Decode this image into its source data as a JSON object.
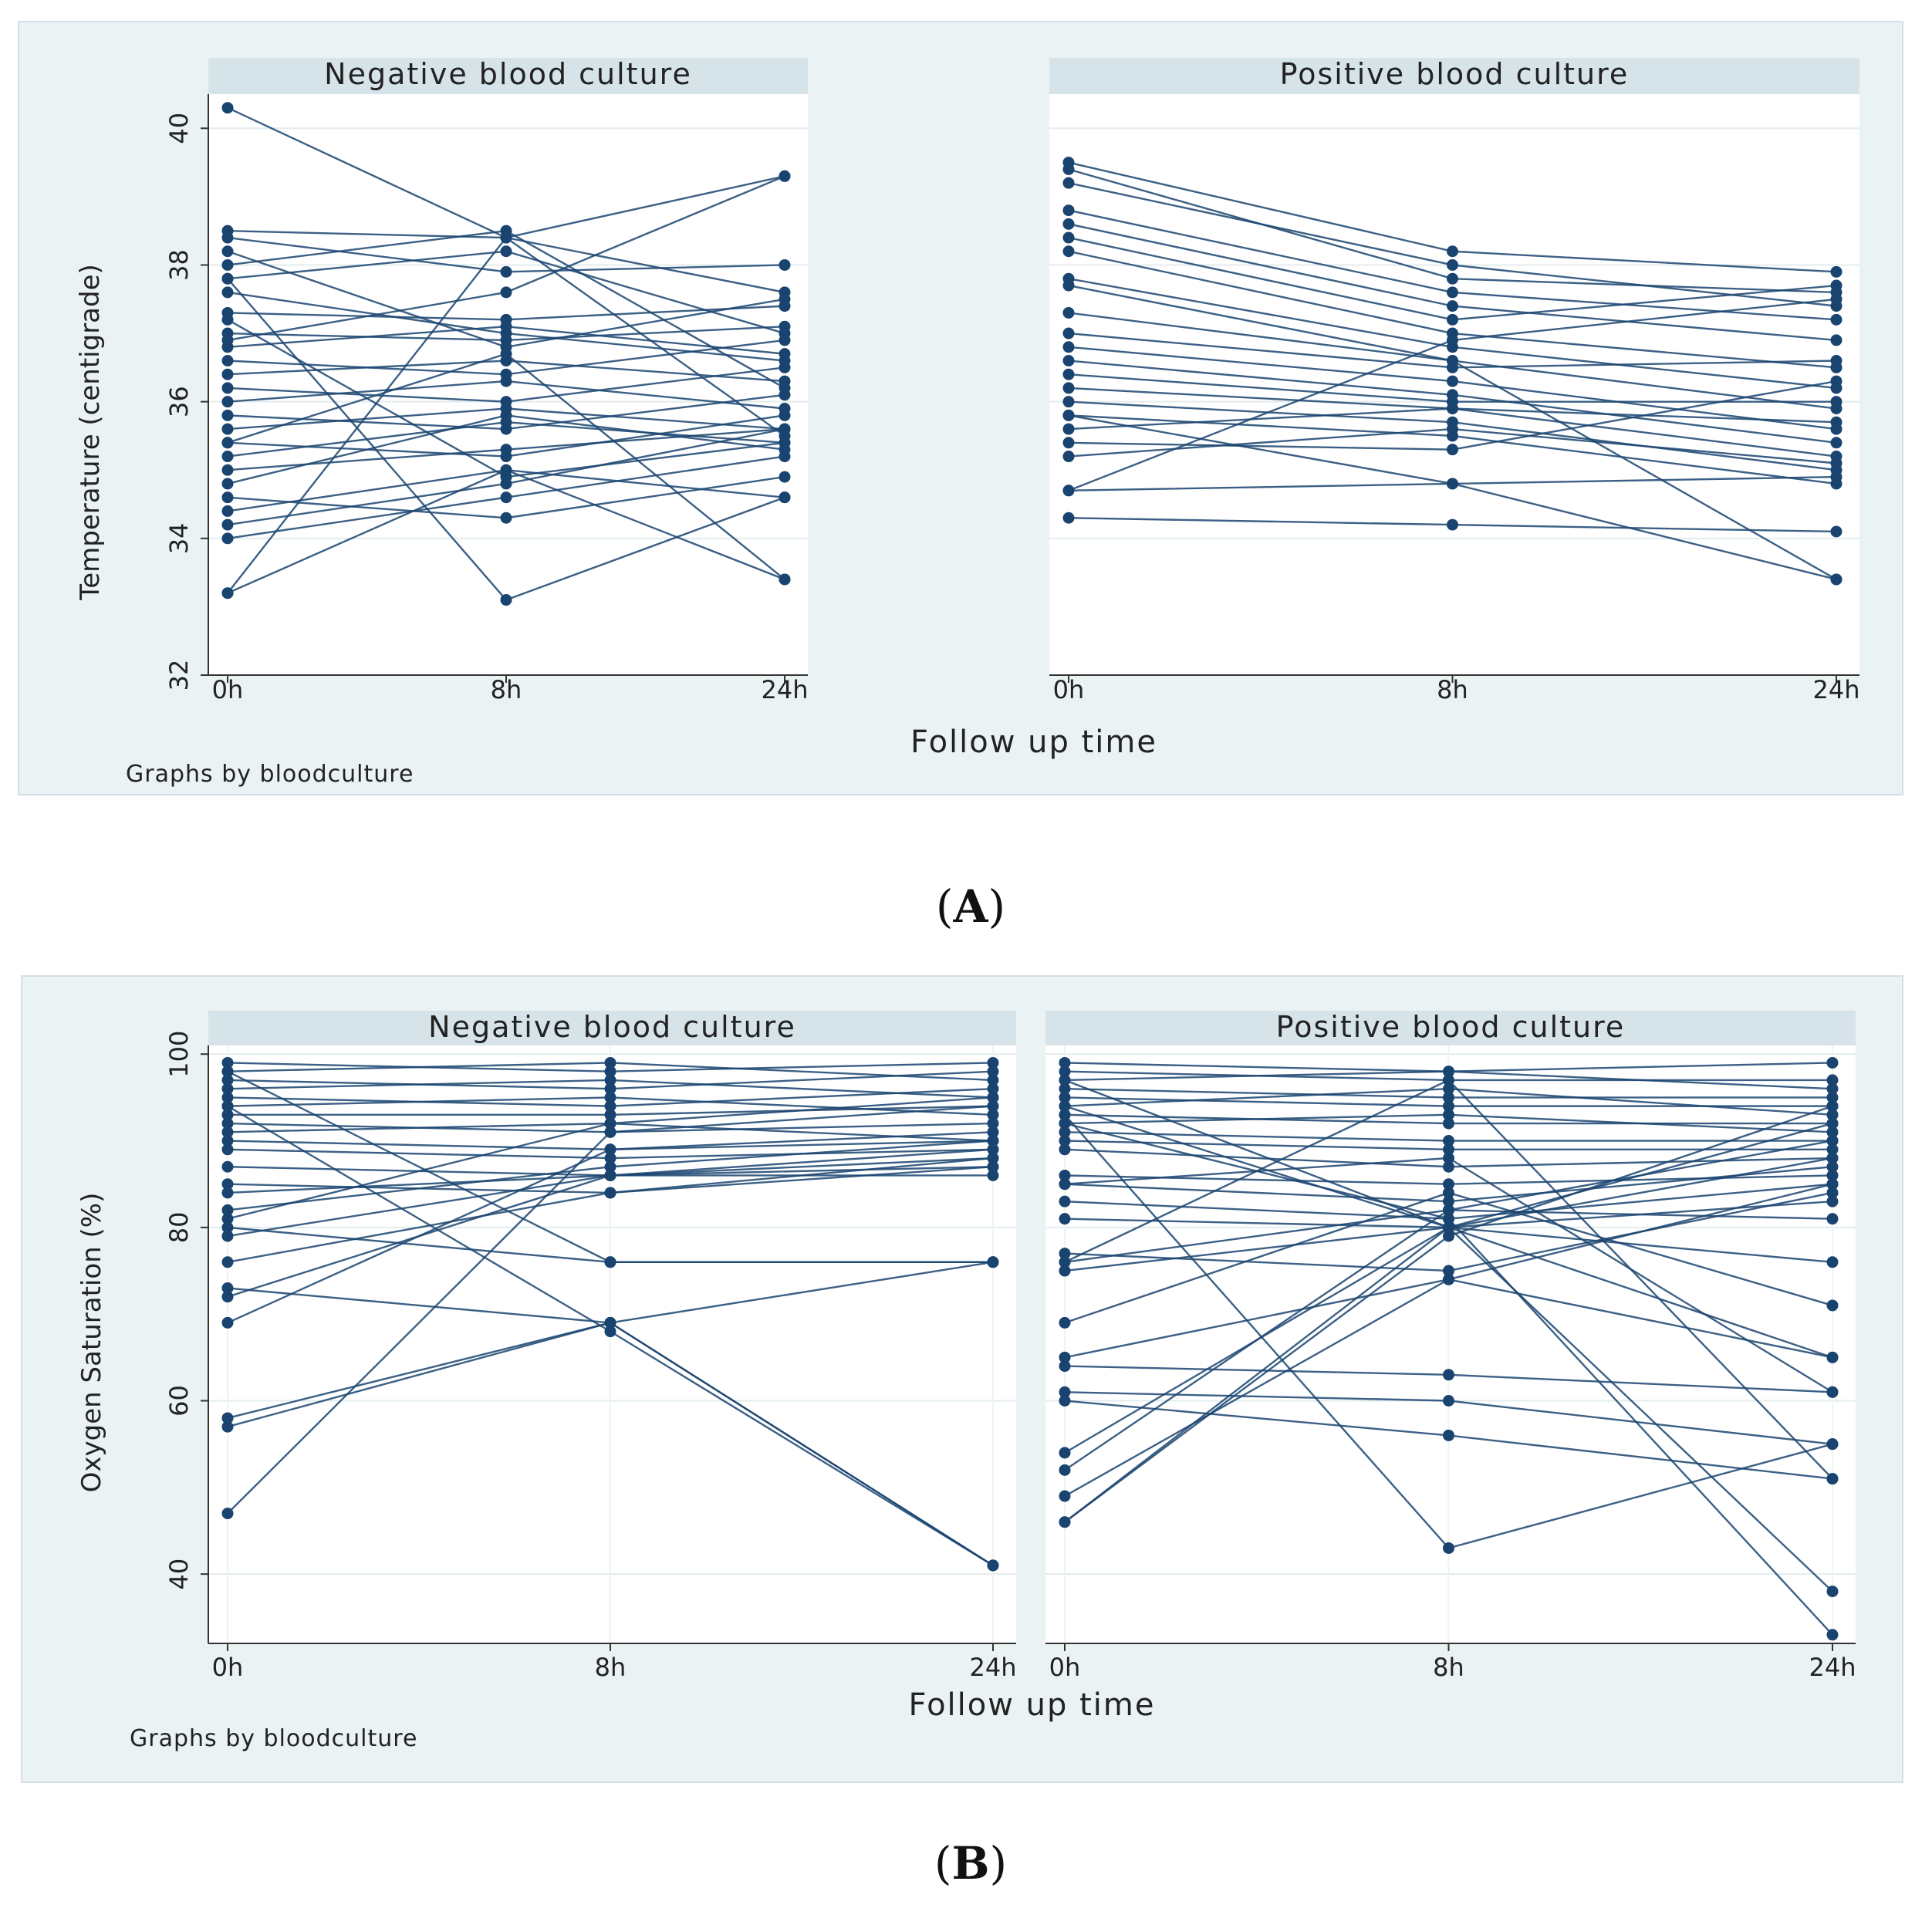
{
  "panels": [
    {
      "label_open": "(",
      "label": "A",
      "label_close": ")",
      "note": "Graphs by bloodculture",
      "chart_data": {
        "type": "line",
        "x": [
          "0h",
          "8h",
          "24h"
        ],
        "xlabel": "Follow up time",
        "ylabel": "Temperature (centigrade)",
        "ylim": [
          32,
          40.5
        ],
        "yticks": [
          32,
          34,
          36,
          38,
          40
        ],
        "grid": true,
        "color": "#1a4470",
        "facets": [
          {
            "name": "Negative blood culture",
            "series": [
              {
                "values": [
                  40.3,
                  38.4,
                  37.6
                ]
              },
              {
                "values": [
                  38.5,
                  38.4,
                  39.3
                ]
              },
              {
                "values": [
                  38.4,
                  37.9,
                  38.0
                ]
              },
              {
                "values": [
                  38.2,
                  36.8,
                  37.5
                ]
              },
              {
                "values": [
                  38.0,
                  38.5,
                  36.2
                ]
              },
              {
                "values": [
                  37.8,
                  38.2,
                  37.0
                ]
              },
              {
                "values": [
                  37.6,
                  37.0,
                  36.6
                ]
              },
              {
                "values": [
                  37.3,
                  37.2,
                  37.4
                ]
              },
              {
                "values": [
                  37.0,
                  36.9,
                  37.1
                ]
              },
              {
                "values": [
                  36.8,
                  37.1,
                  36.7
                ]
              },
              {
                "values": [
                  36.6,
                  36.4,
                  36.9
                ]
              },
              {
                "values": [
                  36.4,
                  36.6,
                  36.3
                ]
              },
              {
                "values": [
                  36.2,
                  36.0,
                  36.5
                ]
              },
              {
                "values": [
                  36.0,
                  36.3,
                  35.9
                ]
              },
              {
                "values": [
                  35.8,
                  35.6,
                  36.1
                ]
              },
              {
                "values": [
                  35.6,
                  35.9,
                  35.6
                ]
              },
              {
                "values": [
                  35.4,
                  35.2,
                  35.8
                ]
              },
              {
                "values": [
                  35.2,
                  35.7,
                  35.4
                ]
              },
              {
                "values": [
                  35.0,
                  35.3,
                  35.6
                ]
              },
              {
                "values": [
                  34.8,
                  35.8,
                  35.3
                ]
              },
              {
                "values": [
                  34.6,
                  34.3,
                  34.9
                ]
              },
              {
                "values": [
                  34.4,
                  35.0,
                  34.6
                ]
              },
              {
                "values": [
                  34.2,
                  34.8,
                  35.6
                ]
              },
              {
                "values": [
                  34.0,
                  34.6,
                  35.2
                ]
              },
              {
                "values": [
                  33.2,
                  35.0,
                  33.4
                ]
              },
              {
                "values": [
                  33.2,
                  38.4,
                  35.5
                ]
              },
              {
                "values": [
                  37.8,
                  33.1,
                  34.6
                ]
              },
              {
                "values": [
                  36.9,
                  37.6,
                  39.3
                ]
              },
              {
                "values": [
                  35.4,
                  36.7,
                  33.4
                ]
              },
              {
                "values": [
                  37.2,
                  34.9,
                  35.4
                ]
              }
            ]
          },
          {
            "name": "Positive blood culture",
            "series": [
              {
                "values": [
                  39.5,
                  38.2,
                  37.9
                ]
              },
              {
                "values": [
                  39.4,
                  37.8,
                  37.6
                ]
              },
              {
                "values": [
                  39.2,
                  38.0,
                  37.4
                ]
              },
              {
                "values": [
                  38.8,
                  37.6,
                  37.2
                ]
              },
              {
                "values": [
                  38.6,
                  37.4,
                  36.9
                ]
              },
              {
                "values": [
                  38.4,
                  37.2,
                  37.7
                ]
              },
              {
                "values": [
                  38.2,
                  37.0,
                  36.5
                ]
              },
              {
                "values": [
                  37.8,
                  36.8,
                  36.2
                ]
              },
              {
                "values": [
                  37.3,
                  36.6,
                  35.9
                ]
              },
              {
                "values": [
                  37.0,
                  36.5,
                  36.6
                ]
              },
              {
                "values": [
                  36.8,
                  36.3,
                  35.6
                ]
              },
              {
                "values": [
                  36.6,
                  36.1,
                  35.4
                ]
              },
              {
                "values": [
                  36.4,
                  36.0,
                  36.0
                ]
              },
              {
                "values": [
                  36.2,
                  35.9,
                  35.2
                ]
              },
              {
                "values": [
                  36.0,
                  35.7,
                  35.0
                ]
              },
              {
                "values": [
                  35.8,
                  35.5,
                  34.8
                ]
              },
              {
                "values": [
                  35.6,
                  35.9,
                  35.7
                ]
              },
              {
                "values": [
                  35.4,
                  35.3,
                  36.3
                ]
              },
              {
                "values": [
                  35.2,
                  35.6,
                  35.1
                ]
              },
              {
                "values": [
                  34.7,
                  34.8,
                  34.9
                ]
              },
              {
                "values": [
                  34.3,
                  34.2,
                  34.1
                ]
              },
              {
                "values": [
                  35.8,
                  34.8,
                  33.4
                ]
              },
              {
                "values": [
                  37.7,
                  36.6,
                  33.4
                ]
              },
              {
                "values": [
                  34.7,
                  36.9,
                  37.5
                ]
              }
            ]
          }
        ]
      }
    },
    {
      "label_open": "(",
      "label": "B",
      "label_close": ")",
      "note": "Graphs by bloodculture",
      "chart_data": {
        "type": "line",
        "x": [
          "0h",
          "8h",
          "24h"
        ],
        "xlabel": "Follow up time",
        "ylabel": "Oxygen Saturation (%)",
        "ylim": [
          32,
          101
        ],
        "yticks": [
          40,
          60,
          80,
          100
        ],
        "grid": true,
        "color": "#1a4470",
        "facets": [
          {
            "name": "Negative blood culture",
            "series": [
              {
                "values": [
                  99,
                  98,
                  99
                ]
              },
              {
                "values": [
                  98,
                  99,
                  97
                ]
              },
              {
                "values": [
                  97,
                  96,
                  98
                ]
              },
              {
                "values": [
                  96,
                  97,
                  95
                ]
              },
              {
                "values": [
                  95,
                  94,
                  96
                ]
              },
              {
                "values": [
                  94,
                  95,
                  93
                ]
              },
              {
                "values": [
                  93,
                  93,
                  94
                ]
              },
              {
                "values": [
                  92,
                  91,
                  92
                ]
              },
              {
                "values": [
                  91,
                  92,
                  90
                ]
              },
              {
                "values": [
                  90,
                  89,
                  91
                ]
              },
              {
                "values": [
                  89,
                  88,
                  89
                ]
              },
              {
                "values": [
                  87,
                  86,
                  88
                ]
              },
              {
                "values": [
                  85,
                  84,
                  87
                ]
              },
              {
                "values": [
                  84,
                  86,
                  86
                ]
              },
              {
                "values": [
                  82,
                  87,
                  90
                ]
              },
              {
                "values": [
                  80,
                  76,
                  76
                ]
              },
              {
                "values": [
                  79,
                  86,
                  89
                ]
              },
              {
                "values": [
                  76,
                  84,
                  88
                ]
              },
              {
                "values": [
                  73,
                  69,
                  76
                ]
              },
              {
                "values": [
                  72,
                  86,
                  87
                ]
              },
              {
                "values": [
                  69,
                  89,
                  90
                ]
              },
              {
                "values": [
                  58,
                  69,
                  41
                ]
              },
              {
                "values": [
                  57,
                  69,
                  41
                ]
              },
              {
                "values": [
                  47,
                  91,
                  94
                ]
              },
              {
                "values": [
                  94,
                  68,
                  41
                ]
              },
              {
                "values": [
                  98,
                  76,
                  76
                ]
              },
              {
                "values": [
                  81,
                  92,
                  95
                ]
              }
            ]
          },
          {
            "name": "Positive blood culture",
            "series": [
              {
                "values": [
                  99,
                  98,
                  99
                ]
              },
              {
                "values": [
                  98,
                  97,
                  97
                ]
              },
              {
                "values": [
                  97,
                  98,
                  96
                ]
              },
              {
                "values": [
                  96,
                  95,
                  95
                ]
              },
              {
                "values": [
                  95,
                  94,
                  94
                ]
              },
              {
                "values": [
                  94,
                  96,
                  93
                ]
              },
              {
                "values": [
                  93,
                  92,
                  92
                ]
              },
              {
                "values": [
                  92,
                  93,
                  91
                ]
              },
              {
                "values": [
                  91,
                  90,
                  90
                ]
              },
              {
                "values": [
                  90,
                  89,
                  89
                ]
              },
              {
                "values": [
                  89,
                  87,
                  88
                ]
              },
              {
                "values": [
                  86,
                  85,
                  86
                ]
              },
              {
                "values": [
                  85,
                  83,
                  87
                ]
              },
              {
                "values": [
                  83,
                  81,
                  85
                ]
              },
              {
                "values": [
                  81,
                  80,
                  83
                ]
              },
              {
                "values": [
                  77,
                  75,
                  84
                ]
              },
              {
                "values": [
                  76,
                  82,
                  81
                ]
              },
              {
                "values": [
                  75,
                  80,
                  76
                ]
              },
              {
                "values": [
                  69,
                  84,
                  71
                ]
              },
              {
                "values": [
                  65,
                  74,
                  65
                ]
              },
              {
                "values": [
                  64,
                  63,
                  61
                ]
              },
              {
                "values": [
                  61,
                  60,
                  55
                ]
              },
              {
                "values": [
                  60,
                  56,
                  51
                ]
              },
              {
                "values": [
                  54,
                  80,
                  88
                ]
              },
              {
                "values": [
                  52,
                  82,
                  90
                ]
              },
              {
                "values": [
                  49,
                  74,
                  85
                ]
              },
              {
                "values": [
                  46,
                  80,
                  92
                ]
              },
              {
                "values": [
                  46,
                  79,
                  94
                ]
              },
              {
                "values": [
                  93,
                  43,
                  55
                ]
              },
              {
                "values": [
                  94,
                  80,
                  38
                ]
              },
              {
                "values": [
                  92,
                  81,
                  33
                ]
              },
              {
                "values": [
                  76,
                  97,
                  51
                ]
              },
              {
                "values": [
                  85,
                  88,
                  61
                ]
              },
              {
                "values": [
                  97,
                  80,
                  65
                ]
              }
            ]
          }
        ]
      }
    }
  ]
}
